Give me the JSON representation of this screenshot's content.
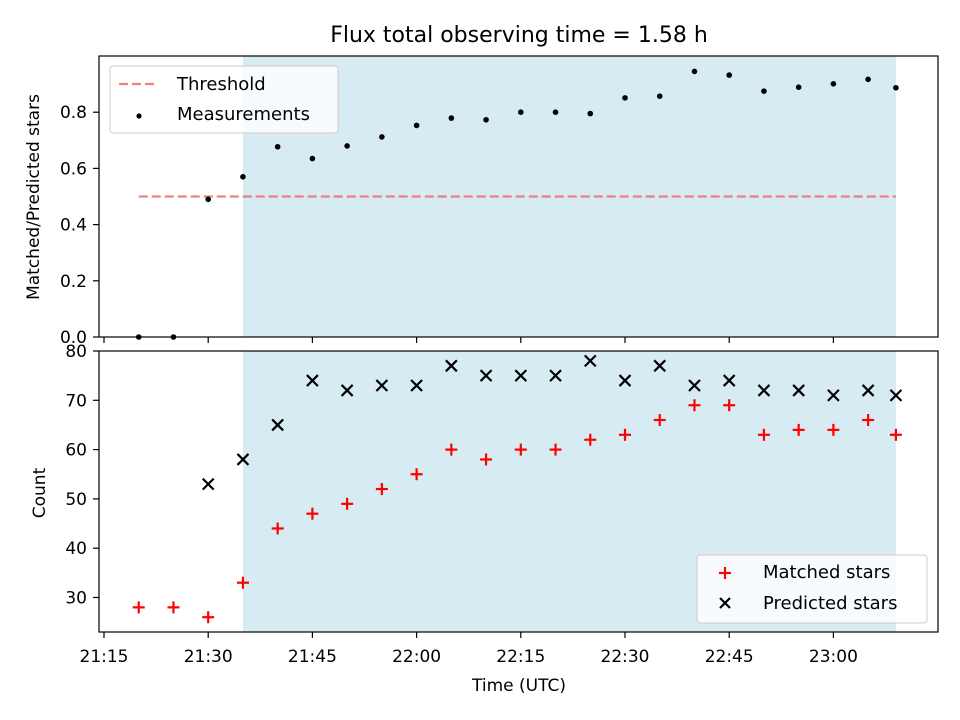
{
  "title": "Flux total observing time = 1.58 h",
  "colors": {
    "shade": "#add8e6",
    "threshold": "#f08080",
    "measurement": "#000000",
    "matched": "#ff0000",
    "predicted": "#000000"
  },
  "chart_data": [
    {
      "type": "scatter",
      "ylabel": "Matched/Predicted stars",
      "ylim": [
        0,
        1.0
      ],
      "yticks": [
        "0.0",
        "0.2",
        "0.4",
        "0.6",
        "0.8"
      ],
      "ytick_values": [
        0,
        0.2,
        0.4,
        0.6,
        0.8
      ],
      "legend": {
        "placement": "top-left",
        "entries": [
          "Threshold",
          "Measurements"
        ]
      },
      "shaded_region": [
        "21:35",
        "23:09"
      ],
      "threshold": {
        "name": "Threshold",
        "value": 0.5,
        "x_start": "21:20",
        "x_end": "23:09"
      },
      "series": [
        {
          "name": "Measurements",
          "x": [
            "21:20",
            "21:25",
            "21:30",
            "21:35",
            "21:40",
            "21:45",
            "21:50",
            "21:55",
            "22:00",
            "22:05",
            "22:10",
            "22:15",
            "22:20",
            "22:25",
            "22:30",
            "22:35",
            "22:40",
            "22:45",
            "22:50",
            "22:55",
            "23:00",
            "23:05",
            "23:09"
          ],
          "values": [
            0.0,
            0.0,
            0.49,
            0.57,
            0.677,
            0.635,
            0.68,
            0.712,
            0.753,
            0.779,
            0.773,
            0.8,
            0.8,
            0.795,
            0.851,
            0.857,
            0.945,
            0.932,
            0.875,
            0.889,
            0.901,
            0.917,
            0.887
          ]
        }
      ]
    },
    {
      "type": "scatter",
      "xlabel": "Time (UTC)",
      "ylabel": "Count",
      "ylim": [
        23,
        80
      ],
      "yticks": [
        "30",
        "40",
        "50",
        "60",
        "70",
        "80"
      ],
      "ytick_values": [
        30,
        40,
        50,
        60,
        70,
        80
      ],
      "xticks": [
        "21:15",
        "21:30",
        "21:45",
        "22:00",
        "22:15",
        "22:30",
        "22:45",
        "23:00"
      ],
      "legend": {
        "placement": "bottom-right",
        "entries": [
          "Matched stars",
          "Predicted stars"
        ]
      },
      "shaded_region": [
        "21:35",
        "23:09"
      ],
      "series": [
        {
          "name": "Matched stars",
          "x": [
            "21:20",
            "21:25",
            "21:30",
            "21:35",
            "21:40",
            "21:45",
            "21:50",
            "21:55",
            "22:00",
            "22:05",
            "22:10",
            "22:15",
            "22:20",
            "22:25",
            "22:30",
            "22:35",
            "22:40",
            "22:45",
            "22:50",
            "22:55",
            "23:00",
            "23:05",
            "23:09"
          ],
          "values": [
            28,
            28,
            26,
            33,
            44,
            47,
            49,
            52,
            55,
            60,
            58,
            60,
            60,
            62,
            63,
            66,
            69,
            69,
            63,
            64,
            64,
            66,
            63
          ]
        },
        {
          "name": "Predicted stars",
          "x": [
            "21:30",
            "21:35",
            "21:40",
            "21:45",
            "21:50",
            "21:55",
            "22:00",
            "22:05",
            "22:10",
            "22:15",
            "22:20",
            "22:25",
            "22:30",
            "22:35",
            "22:40",
            "22:45",
            "22:50",
            "22:55",
            "23:00",
            "23:05",
            "23:09"
          ],
          "values": [
            53,
            58,
            65,
            74,
            72,
            73,
            73,
            77,
            75,
            75,
            75,
            78,
            74,
            77,
            73,
            74,
            72,
            72,
            71,
            72,
            71
          ]
        }
      ]
    }
  ]
}
